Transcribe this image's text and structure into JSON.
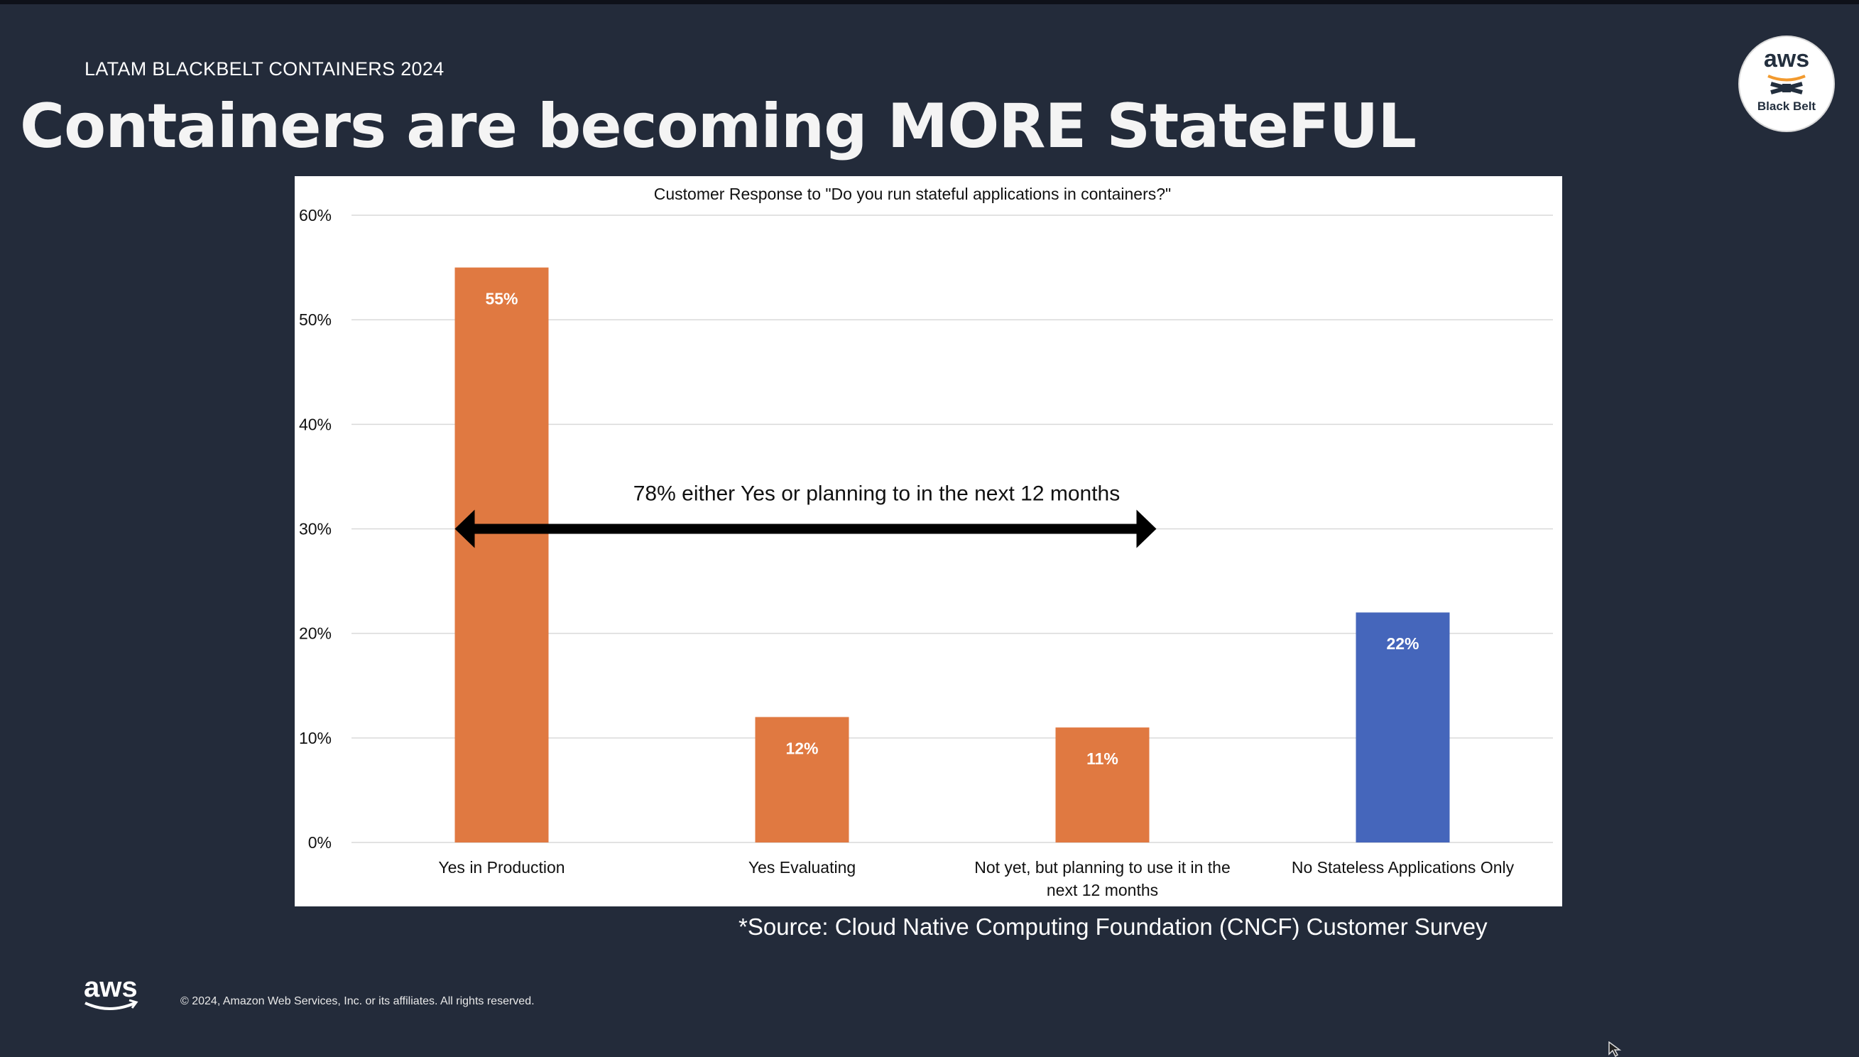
{
  "slide": {
    "eyebrow": "LATAM BLACKBELT CONTAINERS 2024",
    "title": "Containers are becoming MORE StateFUL",
    "badge": {
      "brand": "aws",
      "label": "Black Belt"
    },
    "source": "*Source: Cloud Native Computing Foundation (CNCF) Customer Survey",
    "footer": {
      "logo": "aws",
      "copyright": "© 2024, Amazon Web Services, Inc. or its affiliates. All rights reserved."
    }
  },
  "chart_data": {
    "type": "bar",
    "title": "Customer Response to \"Do you run stateful applications in containers?\"",
    "categories": [
      [
        "Yes in Production"
      ],
      [
        "Yes Evaluating"
      ],
      [
        "Not yet, but planning to use it in the",
        "next 12 months"
      ],
      [
        "No Stateless Applications Only"
      ]
    ],
    "values": [
      55,
      12,
      11,
      22
    ],
    "data_labels": [
      "55%",
      "12%",
      "11%",
      "22%"
    ],
    "colors": [
      "#e07941",
      "#e07941",
      "#e07941",
      "#4566bb"
    ],
    "ylim": [
      0,
      60
    ],
    "yticks": [
      0,
      10,
      20,
      30,
      40,
      50,
      60
    ],
    "ytick_labels": [
      "0%",
      "10%",
      "20%",
      "30%",
      "40%",
      "50%",
      "60%"
    ],
    "grid": true,
    "annotation": {
      "text": "78% either Yes or planning to in the next 12 months",
      "arrow_y": 30,
      "arrow_from_category": 0,
      "arrow_to_category": 2
    }
  }
}
